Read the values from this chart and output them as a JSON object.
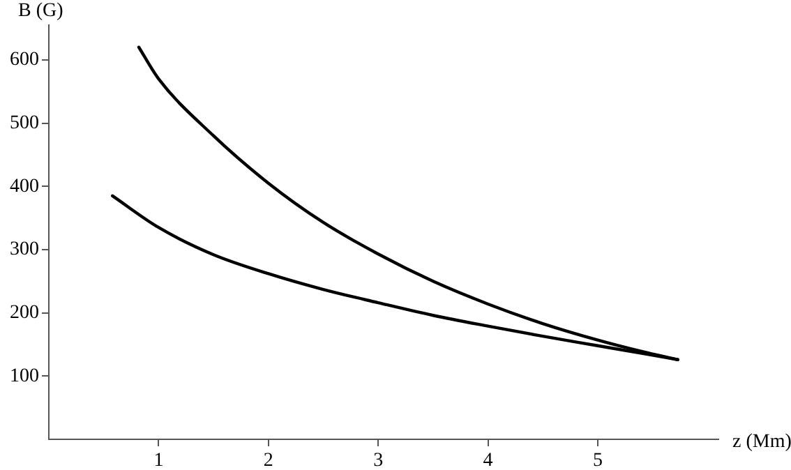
{
  "chart_data": {
    "type": "line",
    "xlabel": "z (Mm)",
    "ylabel": "B (G)",
    "xlim": [
      0,
      6.1
    ],
    "ylim": [
      0,
      655
    ],
    "xticks": [
      1,
      2,
      3,
      4,
      5
    ],
    "yticks": [
      100,
      200,
      300,
      400,
      500,
      600
    ],
    "grid": false,
    "legend": false,
    "marker": "none",
    "line_style": "solid",
    "series": [
      {
        "color": "#000000",
        "x": [
          0.82,
          1,
          1.5,
          2,
          2.5,
          3,
          3.5,
          4,
          4.5,
          5,
          5.4,
          5.73
        ],
        "values": [
          620,
          570,
          480,
          405,
          343,
          293,
          250,
          214,
          183,
          157,
          139,
          126
        ]
      },
      {
        "color": "#000000",
        "x": [
          0.58,
          1,
          1.5,
          2,
          2.5,
          3,
          3.5,
          4,
          4.5,
          5,
          5.4,
          5.73
        ],
        "values": [
          385,
          335,
          292,
          262,
          237,
          216,
          196,
          179,
          163,
          148,
          136,
          126
        ]
      }
    ]
  }
}
